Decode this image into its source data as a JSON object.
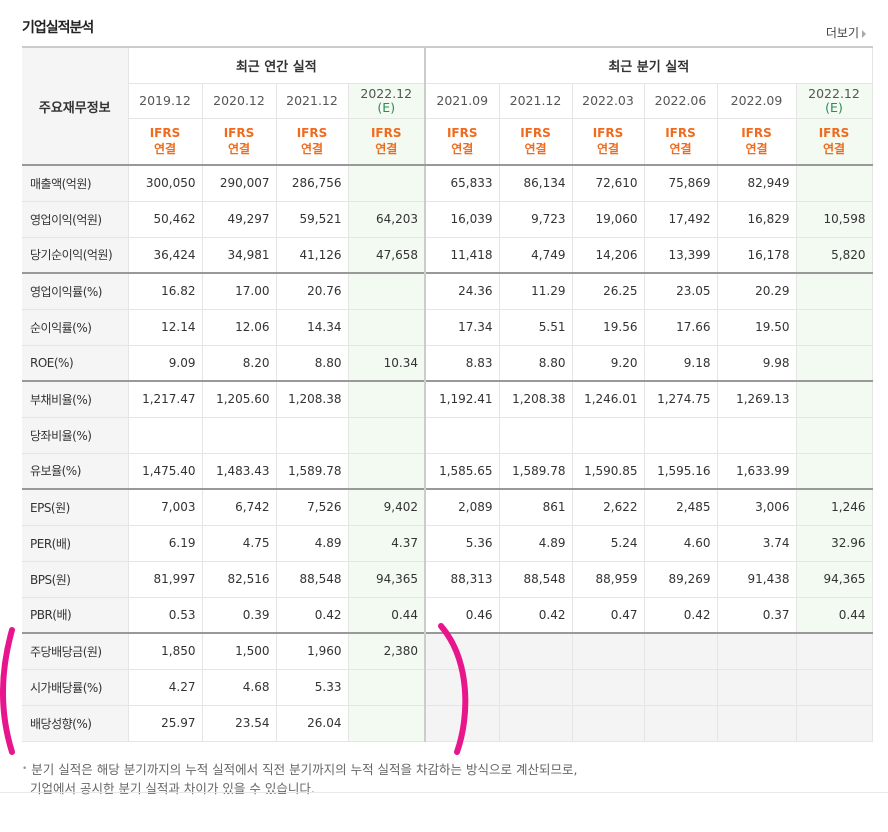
{
  "title": "기업실적분석",
  "more_label": "더보기",
  "header": {
    "row_label": "주요재무정보",
    "annual_group": "최근 연간 실적",
    "quarter_group": "최근 분기 실적",
    "ifrs": "IFRS",
    "consolidated": "연결",
    "estimate_badge": "(E)"
  },
  "annual_years": [
    "2019.12",
    "2020.12",
    "2021.12",
    "2022.12"
  ],
  "quarter_years": [
    "2021.09",
    "2021.12",
    "2022.03",
    "2022.06",
    "2022.09",
    "2022.12"
  ],
  "rows": [
    {
      "label": "매출액(억원)",
      "values": [
        "300,050",
        "290,007",
        "286,756",
        "",
        "65,833",
        "86,134",
        "72,610",
        "75,869",
        "82,949",
        ""
      ]
    },
    {
      "label": "영업이익(억원)",
      "values": [
        "50,462",
        "49,297",
        "59,521",
        "64,203",
        "16,039",
        "9,723",
        "19,060",
        "17,492",
        "16,829",
        "10,598"
      ]
    },
    {
      "label": "당기순이익(억원)",
      "values": [
        "36,424",
        "34,981",
        "41,126",
        "47,658",
        "11,418",
        "4,749",
        "14,206",
        "13,399",
        "16,178",
        "5,820"
      ]
    },
    {
      "label": "영업이익률(%)",
      "values": [
        "16.82",
        "17.00",
        "20.76",
        "",
        "24.36",
        "11.29",
        "26.25",
        "23.05",
        "20.29",
        ""
      ]
    },
    {
      "label": "순이익률(%)",
      "values": [
        "12.14",
        "12.06",
        "14.34",
        "",
        "17.34",
        "5.51",
        "19.56",
        "17.66",
        "19.50",
        ""
      ]
    },
    {
      "label": "ROE(%)",
      "values": [
        "9.09",
        "8.20",
        "8.80",
        "10.34",
        "8.83",
        "8.80",
        "9.20",
        "9.18",
        "9.98",
        ""
      ]
    },
    {
      "label": "부채비율(%)",
      "values": [
        "1,217.47",
        "1,205.60",
        "1,208.38",
        "",
        "1,192.41",
        "1,208.38",
        "1,246.01",
        "1,274.75",
        "1,269.13",
        ""
      ]
    },
    {
      "label": "당좌비율(%)",
      "values": [
        "",
        "",
        "",
        "",
        "",
        "",
        "",
        "",
        "",
        ""
      ]
    },
    {
      "label": "유보율(%)",
      "values": [
        "1,475.40",
        "1,483.43",
        "1,589.78",
        "",
        "1,585.65",
        "1,589.78",
        "1,590.85",
        "1,595.16",
        "1,633.99",
        ""
      ]
    },
    {
      "label": "EPS(원)",
      "values": [
        "7,003",
        "6,742",
        "7,526",
        "9,402",
        "2,089",
        "861",
        "2,622",
        "2,485",
        "3,006",
        "1,246"
      ]
    },
    {
      "label": "PER(배)",
      "values": [
        "6.19",
        "4.75",
        "4.89",
        "4.37",
        "5.36",
        "4.89",
        "5.24",
        "4.60",
        "3.74",
        "32.96"
      ]
    },
    {
      "label": "BPS(원)",
      "values": [
        "81,997",
        "82,516",
        "88,548",
        "94,365",
        "88,313",
        "88,548",
        "88,959",
        "89,269",
        "91,438",
        "94,365"
      ]
    },
    {
      "label": "PBR(배)",
      "values": [
        "0.53",
        "0.39",
        "0.42",
        "0.44",
        "0.46",
        "0.42",
        "0.47",
        "0.42",
        "0.37",
        "0.44"
      ]
    },
    {
      "label": "주당배당금(원)",
      "values": [
        "1,850",
        "1,500",
        "1,960",
        "2,380",
        "",
        "",
        "",
        "",
        "",
        ""
      ]
    },
    {
      "label": "시가배당률(%)",
      "values": [
        "4.27",
        "4.68",
        "5.33",
        "",
        "",
        "",
        "",
        "",
        "",
        ""
      ]
    },
    {
      "label": "배당성향(%)",
      "values": [
        "25.97",
        "23.54",
        "26.04",
        "",
        "",
        "",
        "",
        "",
        "",
        ""
      ]
    }
  ],
  "group_starts": [
    3,
    6,
    9,
    13
  ],
  "note_line1": "분기 실적은 해당 분기까지의 누적 실적에서 직전 분기까지의 누적 실적을 차감하는 방식으로 계산되므로,",
  "note_line2": "기업에서 공시한 분기 실적과 차이가 있을 수 있습니다.",
  "annotation_color": "#e8168c"
}
